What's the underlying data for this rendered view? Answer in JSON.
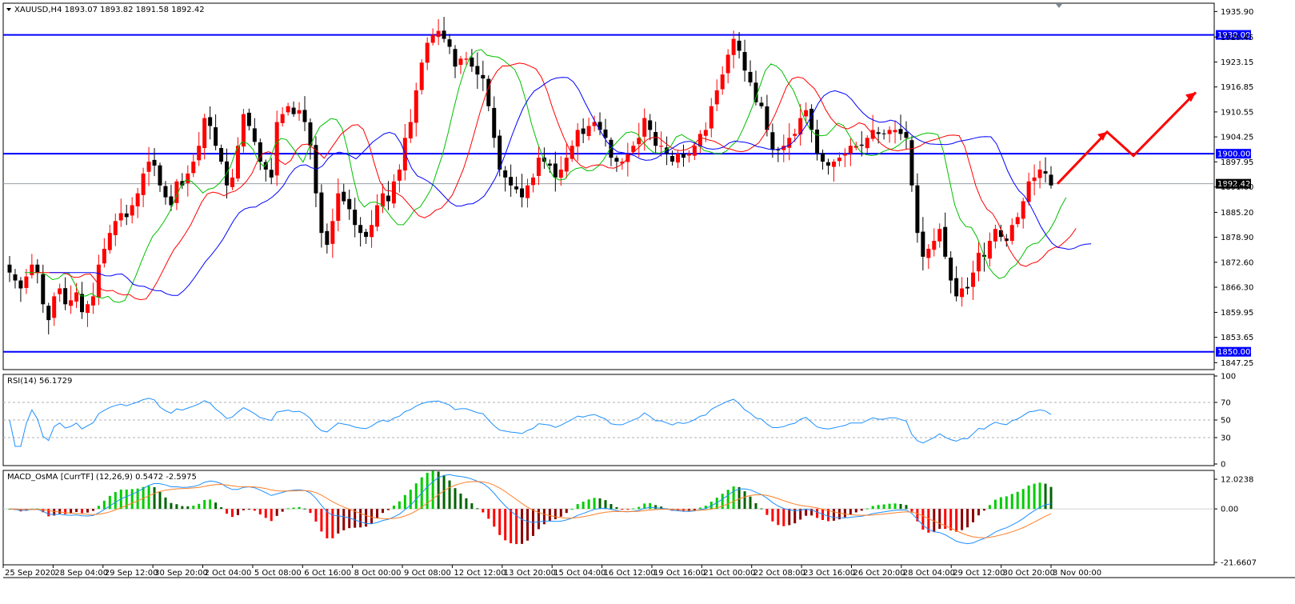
{
  "window": {
    "title": "XAUUSD,H4",
    "ohlc": "1893.07 1893.82 1891.58 1892.42"
  },
  "colors": {
    "bull": "#ff0000",
    "bear": "#000000",
    "level": "#0000ff",
    "ma_fast": "#00c000",
    "ma_mid": "#ff0000",
    "ma_slow": "#0000ff",
    "rsi": "#1e90ff",
    "macd_main": "#1e90ff",
    "macd_signal": "#ff7f27",
    "osma_pos_strong": "#00cc00",
    "osma_pos_weak": "#006400",
    "osma_neg_strong": "#ff0000",
    "osma_neg_weak": "#8b0000",
    "forecast_arrow": "#ff0000"
  },
  "price_axis": {
    "ticks": [
      "1935.90",
      "1929.45",
      "1923.15",
      "1916.85",
      "1910.55",
      "1904.25",
      "1897.95",
      "1891.60",
      "1885.20",
      "1878.90",
      "1872.60",
      "1866.30",
      "1859.95",
      "1853.65",
      "1847.25"
    ]
  },
  "levels": [
    {
      "value": 1930.0,
      "label": "1930.00"
    },
    {
      "value": 1900.0,
      "label": "1900.00"
    },
    {
      "value": 1850.0,
      "label": "1850.00"
    }
  ],
  "current_price": {
    "value": 1892.42,
    "label": "1892.42"
  },
  "rsi": {
    "title": "RSI(14) 56.1729",
    "ticks": [
      "100",
      "70",
      "50",
      "30",
      "0"
    ]
  },
  "macd": {
    "title": "MACD_OsMA [CurrTF] (12,26,9) 0.5472 -2.5975",
    "ticks": [
      "12.0238",
      "0.00",
      "-21.6607"
    ]
  },
  "time_axis": {
    "labels": [
      "25 Sep 2020",
      "28 Sep 04:00",
      "29 Sep 12:00",
      "30 Sep 20:00",
      "2 Oct 04:00",
      "5 Oct 08:00",
      "6 Oct 16:00",
      "8 Oct 00:00",
      "9 Oct 08:00",
      "12 Oct 12:00",
      "13 Oct 20:00",
      "15 Oct 04:00",
      "16 Oct 12:00",
      "19 Oct 16:00",
      "21 Oct 00:00",
      "22 Oct 08:00",
      "23 Oct 16:00",
      "26 Oct 20:00",
      "28 Oct 04:00",
      "29 Oct 12:00",
      "30 Oct 20:00",
      "3 Nov 00:00"
    ]
  },
  "chart_data": {
    "type": "candlestick",
    "symbol": "XAUUSD",
    "timeframe": "H4",
    "ylim": [
      1845.5,
      1938.0
    ],
    "closes": [
      1870,
      1868,
      1866,
      1869,
      1872,
      1870,
      1862,
      1858,
      1864,
      1866,
      1862,
      1863,
      1865,
      1860,
      1862,
      1864,
      1872,
      1876,
      1880,
      1883,
      1885,
      1884,
      1887,
      1890,
      1895,
      1898,
      1897,
      1892,
      1889,
      1887,
      1893,
      1892,
      1895,
      1898,
      1902,
      1909,
      1907,
      1902,
      1898,
      1892,
      1894,
      1902,
      1910,
      1907,
      1903,
      1898,
      1896,
      1894,
      1908,
      1910,
      1912,
      1910,
      1911,
      1908,
      1902,
      1890,
      1880,
      1877,
      1883,
      1890,
      1888,
      1886,
      1882,
      1880,
      1879,
      1882,
      1887,
      1890,
      1888,
      1893,
      1896,
      1904,
      1908,
      1916,
      1923,
      1928,
      1930,
      1931,
      1929,
      1927,
      1922,
      1924,
      1924,
      1922,
      1920,
      1919,
      1912,
      1904,
      1896,
      1894,
      1892,
      1891,
      1889,
      1892,
      1894,
      1899,
      1898,
      1897,
      1894,
      1896,
      1899,
      1902,
      1906,
      1905,
      1907,
      1908,
      1906,
      1904,
      1899,
      1898,
      1898,
      1900,
      1902,
      1904,
      1909,
      1906,
      1902,
      1902,
      1900,
      1898,
      1900,
      1899,
      1900,
      1902,
      1905,
      1906,
      1912,
      1916,
      1920,
      1925,
      1929,
      1926,
      1921,
      1918,
      1913,
      1912,
      1906,
      1901,
      1901,
      1902,
      1904,
      1905,
      1909,
      1911,
      1906,
      1900,
      1898,
      1897,
      1898,
      1899,
      1900,
      1902,
      1902,
      1902,
      1904,
      1906,
      1905,
      1905,
      1906,
      1906,
      1905,
      1904,
      1892,
      1880,
      1874,
      1876,
      1878,
      1881,
      1874,
      1868,
      1864,
      1866,
      1866,
      1870,
      1875,
      1874,
      1878,
      1881,
      1879,
      1878,
      1882,
      1884,
      1888,
      1893,
      1894,
      1896,
      1895,
      1892
    ],
    "overlays": [
      "MA fast (green)",
      "MA mid (red)",
      "MA slow (blue)"
    ],
    "forecast_path": [
      1892.42,
      1905.5,
      1899.5,
      1915.5
    ]
  }
}
